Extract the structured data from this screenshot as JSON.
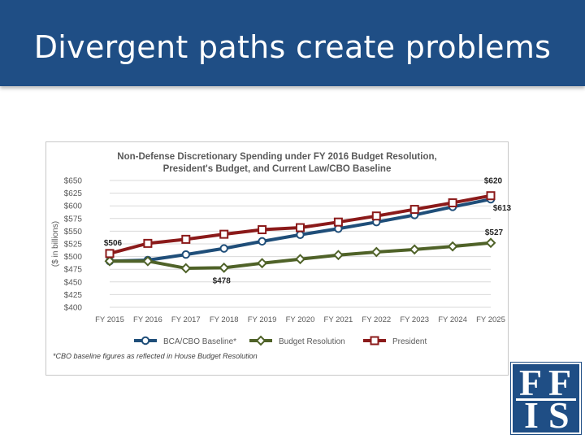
{
  "slide": {
    "title": "Divergent paths create problems"
  },
  "logo": {
    "letters": [
      "F",
      "F",
      "I",
      "S"
    ],
    "background_color": "#1f4e85"
  },
  "chart_data": {
    "type": "line",
    "title_lines": [
      "Non-Defense Discretionary Spending under FY 2016 Budget Resolution,",
      "President's Budget, and Current Law/CBO Baseline"
    ],
    "ylabel": "($ in billions)",
    "ylim": [
      400,
      650
    ],
    "yticks": [
      400,
      425,
      450,
      475,
      500,
      525,
      550,
      575,
      600,
      625,
      650
    ],
    "ytick_labels": [
      "$400",
      "$425",
      "$450",
      "$475",
      "$500",
      "$525",
      "$550",
      "$575",
      "$600",
      "$625",
      "$650"
    ],
    "categories": [
      "FY 2015",
      "FY 2016",
      "FY 2017",
      "FY 2018",
      "FY 2019",
      "FY 2020",
      "FY 2021",
      "FY 2022",
      "FY 2023",
      "FY 2024",
      "FY 2025"
    ],
    "grid": true,
    "legend_position": "bottom",
    "series": [
      {
        "name": "BCA/CBO Baseline*",
        "color": "#1f4e79",
        "marker": "circle",
        "values": [
          491,
          493,
          504,
          516,
          530,
          543,
          555,
          568,
          582,
          598,
          613
        ]
      },
      {
        "name": "Budget Resolution",
        "color": "#4f6228",
        "marker": "diamond",
        "values": [
          491,
          491,
          477,
          478,
          487,
          495,
          503,
          509,
          514,
          520,
          527
        ]
      },
      {
        "name": "President",
        "color": "#8b1a1a",
        "marker": "square",
        "values": [
          506,
          526,
          534,
          544,
          553,
          557,
          568,
          580,
          593,
          606,
          620
        ]
      }
    ],
    "annotations": [
      {
        "text": "$506",
        "series": "President",
        "index": 0
      },
      {
        "text": "$478",
        "series": "Budget Resolution",
        "index": 3
      },
      {
        "text": "$620",
        "series": "President",
        "index": 10
      },
      {
        "text": "$613",
        "series": "BCA/CBO Baseline*",
        "index": 10
      },
      {
        "text": "$527",
        "series": "Budget Resolution",
        "index": 10
      }
    ],
    "footnote": "*CBO baseline figures as reflected in House Budget Resolution"
  }
}
